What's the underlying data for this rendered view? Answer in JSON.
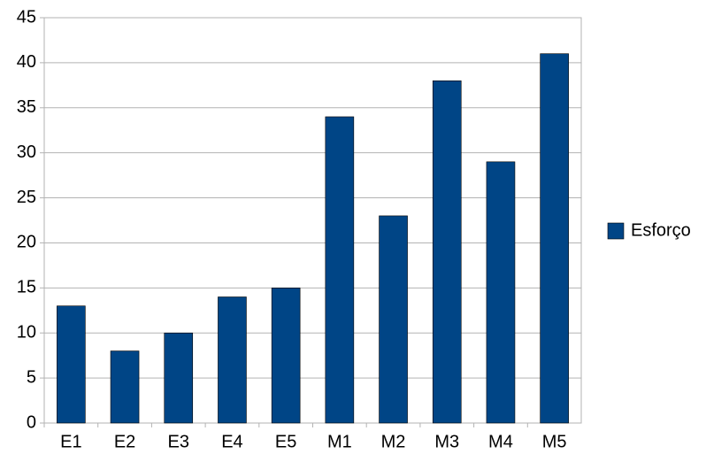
{
  "chart_data": {
    "type": "bar",
    "categories": [
      "E1",
      "E2",
      "E3",
      "E4",
      "E5",
      "M1",
      "M2",
      "M3",
      "M4",
      "M5"
    ],
    "series": [
      {
        "name": "Esforço",
        "color": "#004586",
        "values": [
          13,
          8,
          10,
          14,
          15,
          34,
          23,
          38,
          29,
          41
        ]
      }
    ],
    "ylim": [
      0,
      45
    ],
    "yticks": [
      0,
      5,
      10,
      15,
      20,
      25,
      30,
      35,
      40,
      45
    ],
    "grid": true,
    "legend": "right"
  }
}
